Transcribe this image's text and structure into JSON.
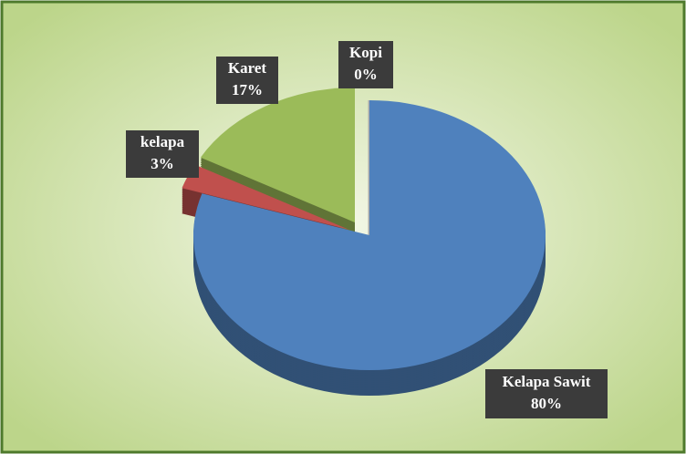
{
  "chart_data": {
    "type": "pie",
    "categories": [
      "Kopi",
      "Kelapa Sawit",
      "kelapa",
      "Karet"
    ],
    "values": [
      0,
      80,
      3,
      17
    ],
    "value_labels": [
      "0%",
      "80%",
      "3%",
      "17%"
    ],
    "colors": [
      "#c9c9c9",
      "#4f81bd",
      "#c0504d",
      "#9bbb59"
    ]
  }
}
